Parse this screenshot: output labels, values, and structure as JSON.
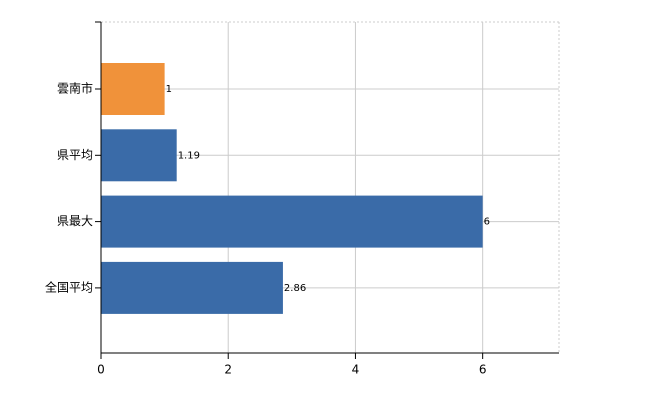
{
  "chart_data": {
    "type": "bar",
    "orientation": "horizontal",
    "categories": [
      "雲南市",
      "県平均",
      "県最大",
      "全国平均"
    ],
    "values": [
      1,
      1.19,
      6,
      2.86
    ],
    "colors": [
      "#f0923a",
      "#3a6ba8",
      "#3a6ba8",
      "#3a6ba8"
    ],
    "xlim": [
      0,
      7.2
    ],
    "xticks": [
      0,
      2,
      4,
      6
    ],
    "grid": true
  }
}
